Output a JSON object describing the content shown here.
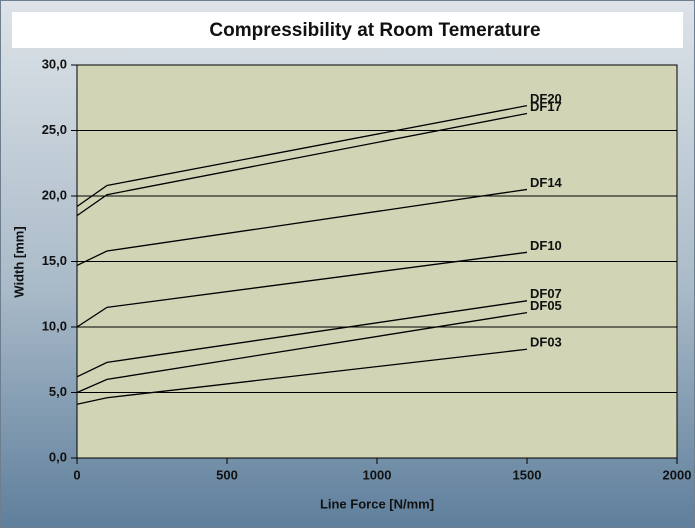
{
  "chart_data": {
    "type": "line",
    "title": "Compressibility at Room Temerature",
    "xlabel": "Line Force [N/mm]",
    "ylabel": "Width [mm]",
    "x": [
      0,
      100,
      1500
    ],
    "series": [
      {
        "name": "DF20",
        "color": "#000000",
        "values": [
          19.2,
          20.8,
          26.9
        ]
      },
      {
        "name": "DF17",
        "color": "#000000",
        "values": [
          18.5,
          20.1,
          26.3
        ]
      },
      {
        "name": "DF14",
        "color": "#000000",
        "values": [
          14.7,
          15.8,
          20.5
        ]
      },
      {
        "name": "DF10",
        "color": "#000000",
        "values": [
          10.0,
          11.5,
          15.7
        ]
      },
      {
        "name": "DF07",
        "color": "#000000",
        "values": [
          6.2,
          7.3,
          12.0
        ]
      },
      {
        "name": "DF05",
        "color": "#000000",
        "values": [
          5.0,
          6.0,
          11.1
        ]
      },
      {
        "name": "DF03",
        "color": "#000000",
        "values": [
          4.1,
          4.6,
          8.3
        ]
      }
    ],
    "xlim": [
      0,
      2000
    ],
    "xticks": [
      0,
      500,
      1000,
      1500,
      2000
    ],
    "ylim": [
      0,
      30
    ],
    "yticks": [
      {
        "value": 0,
        "label": "0,0"
      },
      {
        "value": 5,
        "label": "5,0"
      },
      {
        "value": 10,
        "label": "10,0"
      },
      {
        "value": 15,
        "label": "15,0"
      },
      {
        "value": 20,
        "label": "20,0"
      },
      {
        "value": 25,
        "label": "25,0"
      },
      {
        "value": 30,
        "label": "30,0"
      }
    ],
    "grid": true
  }
}
